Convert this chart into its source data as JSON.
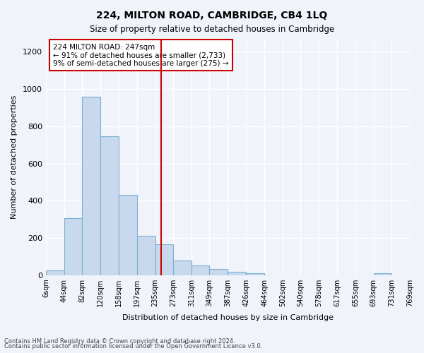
{
  "title": "224, MILTON ROAD, CAMBRIDGE, CB4 1LQ",
  "subtitle": "Size of property relative to detached houses in Cambridge",
  "xlabel": "Distribution of detached houses by size in Cambridge",
  "ylabel": "Number of detached properties",
  "bar_color": "#c9d9ed",
  "bar_edge_color": "#7bafd4",
  "background_color": "#f0f4fa",
  "grid_color": "#ffffff",
  "property_line_x": 247,
  "property_line_color": "#cc0000",
  "annotation_line1": "224 MILTON ROAD: 247sqm",
  "annotation_line2": "← 91% of detached houses are smaller (2,733)",
  "annotation_line3": "9% of semi-detached houses are larger (275) →",
  "annotation_box_color": "#cc0000",
  "bin_edges": [
    6,
    44,
    82,
    120,
    158,
    197,
    235,
    273,
    311,
    349,
    387,
    426,
    464,
    502,
    540,
    578,
    617,
    655,
    693,
    731,
    769
  ],
  "bin_labels": [
    "6sqm",
    "44sqm",
    "82sqm",
    "120sqm",
    "158sqm",
    "197sqm",
    "235sqm",
    "273sqm",
    "311sqm",
    "349sqm",
    "387sqm",
    "426sqm",
    "464sqm",
    "502sqm",
    "540sqm",
    "578sqm",
    "617sqm",
    "655sqm",
    "693sqm",
    "731sqm",
    "769sqm"
  ],
  "bar_heights": [
    25,
    305,
    960,
    748,
    430,
    212,
    165,
    80,
    50,
    33,
    17,
    10,
    0,
    0,
    0,
    0,
    0,
    0,
    10,
    0
  ],
  "ylim": [
    0,
    1270
  ],
  "yticks": [
    0,
    200,
    400,
    600,
    800,
    1000,
    1200
  ],
  "footnote1": "Contains HM Land Registry data © Crown copyright and database right 2024.",
  "footnote2": "Contains public sector information licensed under the Open Government Licence v3.0."
}
